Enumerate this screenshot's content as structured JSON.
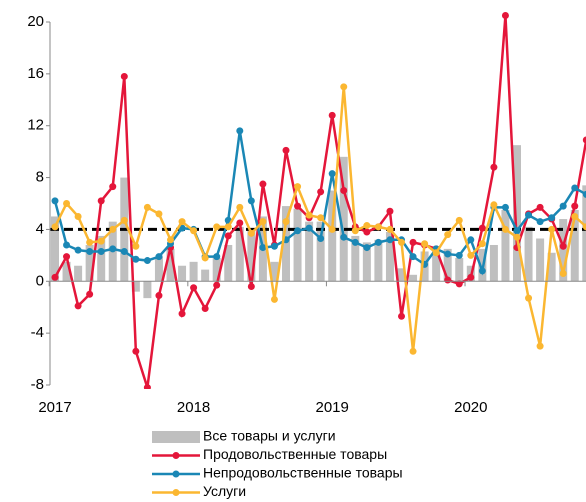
{
  "chart_data": {
    "type": "line",
    "categories": [
      "2017",
      null,
      null,
      null,
      null,
      null,
      null,
      null,
      null,
      null,
      null,
      null,
      "2018",
      null,
      null,
      null,
      null,
      null,
      null,
      null,
      null,
      null,
      null,
      null,
      "2019",
      null,
      null,
      null,
      null,
      null,
      null,
      null,
      null,
      null,
      null,
      null,
      "2020",
      null,
      null,
      null,
      null,
      null,
      null,
      null,
      null,
      null,
      null
    ],
    "series": [
      {
        "name": "Все товары и услуги",
        "type": "bar",
        "color": "#bfbfbf",
        "values": [
          5.0,
          1.5,
          1.2,
          2.8,
          3.5,
          4.6,
          8.0,
          -0.8,
          -1.3,
          1.9,
          2.5,
          1.2,
          1.5,
          0.9,
          1.8,
          2.8,
          4.2,
          4.0,
          5.0,
          1.5,
          5.8,
          5.6,
          4.6,
          4.6,
          7.0,
          9.6,
          3.5,
          3.0,
          3.2,
          3.8,
          1.0,
          0.5,
          2.3,
          2.7,
          2.5,
          1.8,
          1.2,
          2.5,
          2.8,
          5.5,
          10.5,
          4.2,
          3.3,
          2.2,
          4.8,
          5.5,
          7.4
        ]
      },
      {
        "name": "Продовольственные товары",
        "type": "line",
        "color": "#e4163a",
        "values": [
          0.3,
          1.9,
          -1.9,
          -1.0,
          6.2,
          7.3,
          15.8,
          -5.4,
          -8.2,
          -1.1,
          2.6,
          -2.5,
          -0.5,
          -2.1,
          -0.3,
          3.5,
          4.5,
          -0.4,
          7.5,
          2.8,
          10.1,
          5.8,
          4.9,
          6.9,
          12.8,
          7.0,
          4.2,
          3.8,
          4.2,
          5.4,
          -2.7,
          3.0,
          2.8,
          2.5,
          0.1,
          -0.2,
          0.3,
          4.1,
          8.8,
          20.5,
          2.6,
          5.2,
          5.7,
          4.8,
          2.7,
          5.8,
          10.9
        ]
      },
      {
        "name": "Непродовольственные товары",
        "type": "line",
        "color": "#1a87b5",
        "values": [
          6.2,
          2.8,
          2.4,
          2.3,
          2.3,
          2.5,
          2.3,
          1.7,
          1.6,
          1.9,
          2.9,
          4.1,
          4.0,
          1.9,
          1.9,
          4.7,
          11.6,
          6.2,
          2.6,
          2.7,
          3.2,
          3.9,
          4.1,
          3.3,
          8.3,
          3.4,
          3.0,
          2.6,
          3.0,
          3.2,
          3.2,
          1.9,
          1.3,
          2.5,
          2.1,
          2.0,
          3.2,
          0.8,
          5.7,
          5.7,
          3.9,
          5.1,
          4.6,
          4.9,
          5.8,
          7.2,
          6.7
        ]
      },
      {
        "name": "Услуги",
        "type": "line",
        "color": "#fbb731",
        "values": [
          4.2,
          6.0,
          5.0,
          3.0,
          3.1,
          4.0,
          4.7,
          2.7,
          5.7,
          5.2,
          3.2,
          4.6,
          3.9,
          1.8,
          4.2,
          4.2,
          5.7,
          3.7,
          4.6,
          -1.4,
          4.6,
          7.3,
          5.1,
          4.9,
          4.0,
          15.0,
          3.9,
          4.3,
          4.2,
          4.0,
          3.0,
          -5.4,
          2.9,
          2.2,
          3.6,
          4.7,
          2.0,
          2.9,
          5.9,
          4.0,
          3.4,
          -1.3,
          -5.0,
          4.0,
          0.6,
          5.0,
          4.2
        ]
      }
    ],
    "reference_line": 4,
    "ylim": [
      -8,
      20
    ],
    "yticks": [
      -8,
      -4,
      0,
      4,
      8,
      12,
      16,
      20
    ],
    "grid": false
  }
}
